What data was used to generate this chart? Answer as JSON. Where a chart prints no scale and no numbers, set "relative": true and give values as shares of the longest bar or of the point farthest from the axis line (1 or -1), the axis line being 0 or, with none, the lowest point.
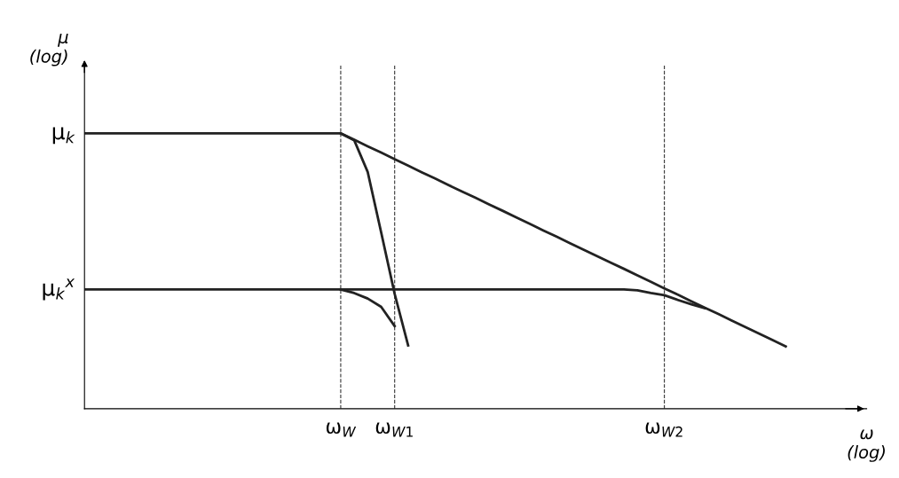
{
  "chart_data": {
    "type": "line",
    "relative": true,
    "xlabel": "ω\n(log)",
    "ylabel": "μ\n(log)",
    "line_style": "solid",
    "marker": "none",
    "grid": "x",
    "categories": [
      null,
      null,
      null,
      null,
      null,
      null,
      null,
      null,
      null,
      null,
      null,
      null,
      null,
      null,
      null,
      null,
      null,
      null,
      null,
      "ω$_{W}$",
      null,
      null,
      null,
      "ω$_{W1}$",
      null,
      null,
      null,
      null,
      null,
      null,
      null,
      null,
      null,
      null,
      null,
      null,
      null,
      null,
      null,
      null,
      null,
      null,
      null,
      "ω$_{W2}$",
      null,
      null,
      null,
      null,
      null,
      null,
      null,
      null,
      null,
      null,
      null,
      null,
      null,
      null,
      null
    ],
    "series": [
      {
        "color": "#222222",
        "values": [
          1,
          1,
          1,
          1,
          1,
          1,
          1,
          1,
          1,
          1,
          1,
          1,
          1,
          1,
          1,
          1,
          1,
          1,
          1,
          1,
          0.977,
          0.953,
          0.93,
          0.906,
          0.883,
          0.859,
          0.836,
          0.812,
          0.789,
          0.766,
          0.742,
          0.719,
          0.695,
          0.672,
          0.648,
          0.625,
          0.601,
          0.578,
          0.554,
          0.531,
          0.508,
          0.484,
          0.461,
          0.437,
          0.414,
          0.39,
          0.367,
          0.344,
          0.32,
          0.297,
          0.273,
          0.25,
          0.226,
          null,
          null,
          null,
          null,
          null,
          null
        ]
      },
      {
        "color": "#222222",
        "values": [
          null,
          null,
          null,
          null,
          null,
          null,
          null,
          null,
          null,
          null,
          null,
          null,
          null,
          null,
          null,
          null,
          null,
          null,
          null,
          1,
          0.975,
          0.86,
          0.64,
          0.417,
          0.23,
          null,
          null,
          null,
          null,
          null,
          null,
          null,
          null,
          null,
          null,
          null,
          null,
          null,
          null,
          null,
          null,
          null,
          null,
          null,
          null,
          null,
          null,
          null,
          null,
          null,
          null,
          null,
          null,
          null,
          null,
          null,
          null,
          null,
          null
        ]
      },
      {
        "color": "#222222",
        "values": [
          0.433,
          0.433,
          0.433,
          0.433,
          0.433,
          0.433,
          0.433,
          0.433,
          0.433,
          0.433,
          0.433,
          0.433,
          0.433,
          0.433,
          0.433,
          0.433,
          0.433,
          0.433,
          0.433,
          0.433,
          0.433,
          0.433,
          0.433,
          0.433,
          0.433,
          0.433,
          0.433,
          0.433,
          0.433,
          0.433,
          0.433,
          0.433,
          0.433,
          0.433,
          0.433,
          0.433,
          0.433,
          0.433,
          0.433,
          0.433,
          0.433,
          0.43,
          0.42,
          0.412,
          0.395,
          0.379,
          0.365,
          null,
          null,
          null,
          null,
          null,
          null,
          null,
          null,
          null,
          null,
          null,
          null
        ]
      },
      {
        "color": "#222222",
        "values": [
          null,
          null,
          null,
          null,
          null,
          null,
          null,
          null,
          null,
          null,
          null,
          null,
          null,
          null,
          null,
          null,
          null,
          null,
          null,
          0.433,
          0.42,
          0.4,
          0.37,
          0.3,
          null,
          null,
          null,
          null,
          null,
          null,
          null,
          null,
          null,
          null,
          null,
          null,
          null,
          null,
          null,
          null,
          null,
          null,
          null,
          null,
          null,
          null,
          null,
          null,
          null,
          null,
          null,
          null,
          null,
          null,
          null,
          null,
          null,
          null,
          null
        ]
      }
    ],
    "annotations": [
      "μ$_{k}$",
      "μ$_{k}$$^{x}$"
    ]
  }
}
